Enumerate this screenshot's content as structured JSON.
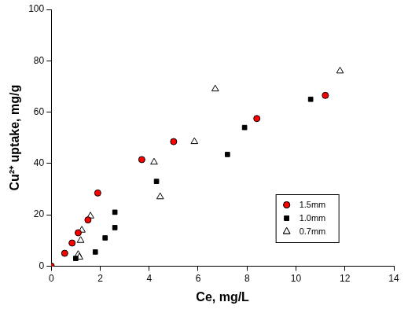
{
  "chart_data": {
    "type": "scatter",
    "x_label": "Ce, mg/L",
    "y_label": "Cu²⁺ uptake, mg/g",
    "xlim": [
      0,
      14
    ],
    "xticks": [
      0,
      2,
      4,
      6,
      8,
      10,
      12,
      14
    ],
    "ylim": [
      0,
      100
    ],
    "yticks": [
      0,
      20,
      40,
      60,
      80,
      100
    ],
    "grid": false,
    "legend": "right",
    "series": [
      {
        "name": "1.5mm",
        "color": "#ff0000",
        "marker": "circle",
        "x": [
          0,
          0.55,
          0.85,
          1.1,
          1.5,
          1.9,
          3.7,
          5.0,
          8.4,
          11.2
        ],
        "values": [
          0,
          5,
          9,
          13,
          18,
          28.5,
          41.5,
          48.5,
          57.5,
          66.5
        ]
      },
      {
        "name": "1.0mm",
        "color": "#000000",
        "marker": "square",
        "x": [
          0,
          1.0,
          1.8,
          2.2,
          2.6,
          2.6,
          4.3,
          7.2,
          7.9,
          10.6
        ],
        "values": [
          0,
          3,
          5.5,
          11,
          15,
          21,
          33,
          43.5,
          54,
          65
        ]
      },
      {
        "name": "0.7mm",
        "color": "#ffffff",
        "marker": "triangle",
        "x": [
          0,
          1.1,
          1.15,
          1.2,
          1.25,
          1.6,
          4.2,
          4.45,
          5.85,
          6.7,
          11.8
        ],
        "values": [
          0,
          4.5,
          3.5,
          10,
          14,
          19.5,
          40.5,
          27,
          48.5,
          69,
          76
        ]
      }
    ]
  }
}
